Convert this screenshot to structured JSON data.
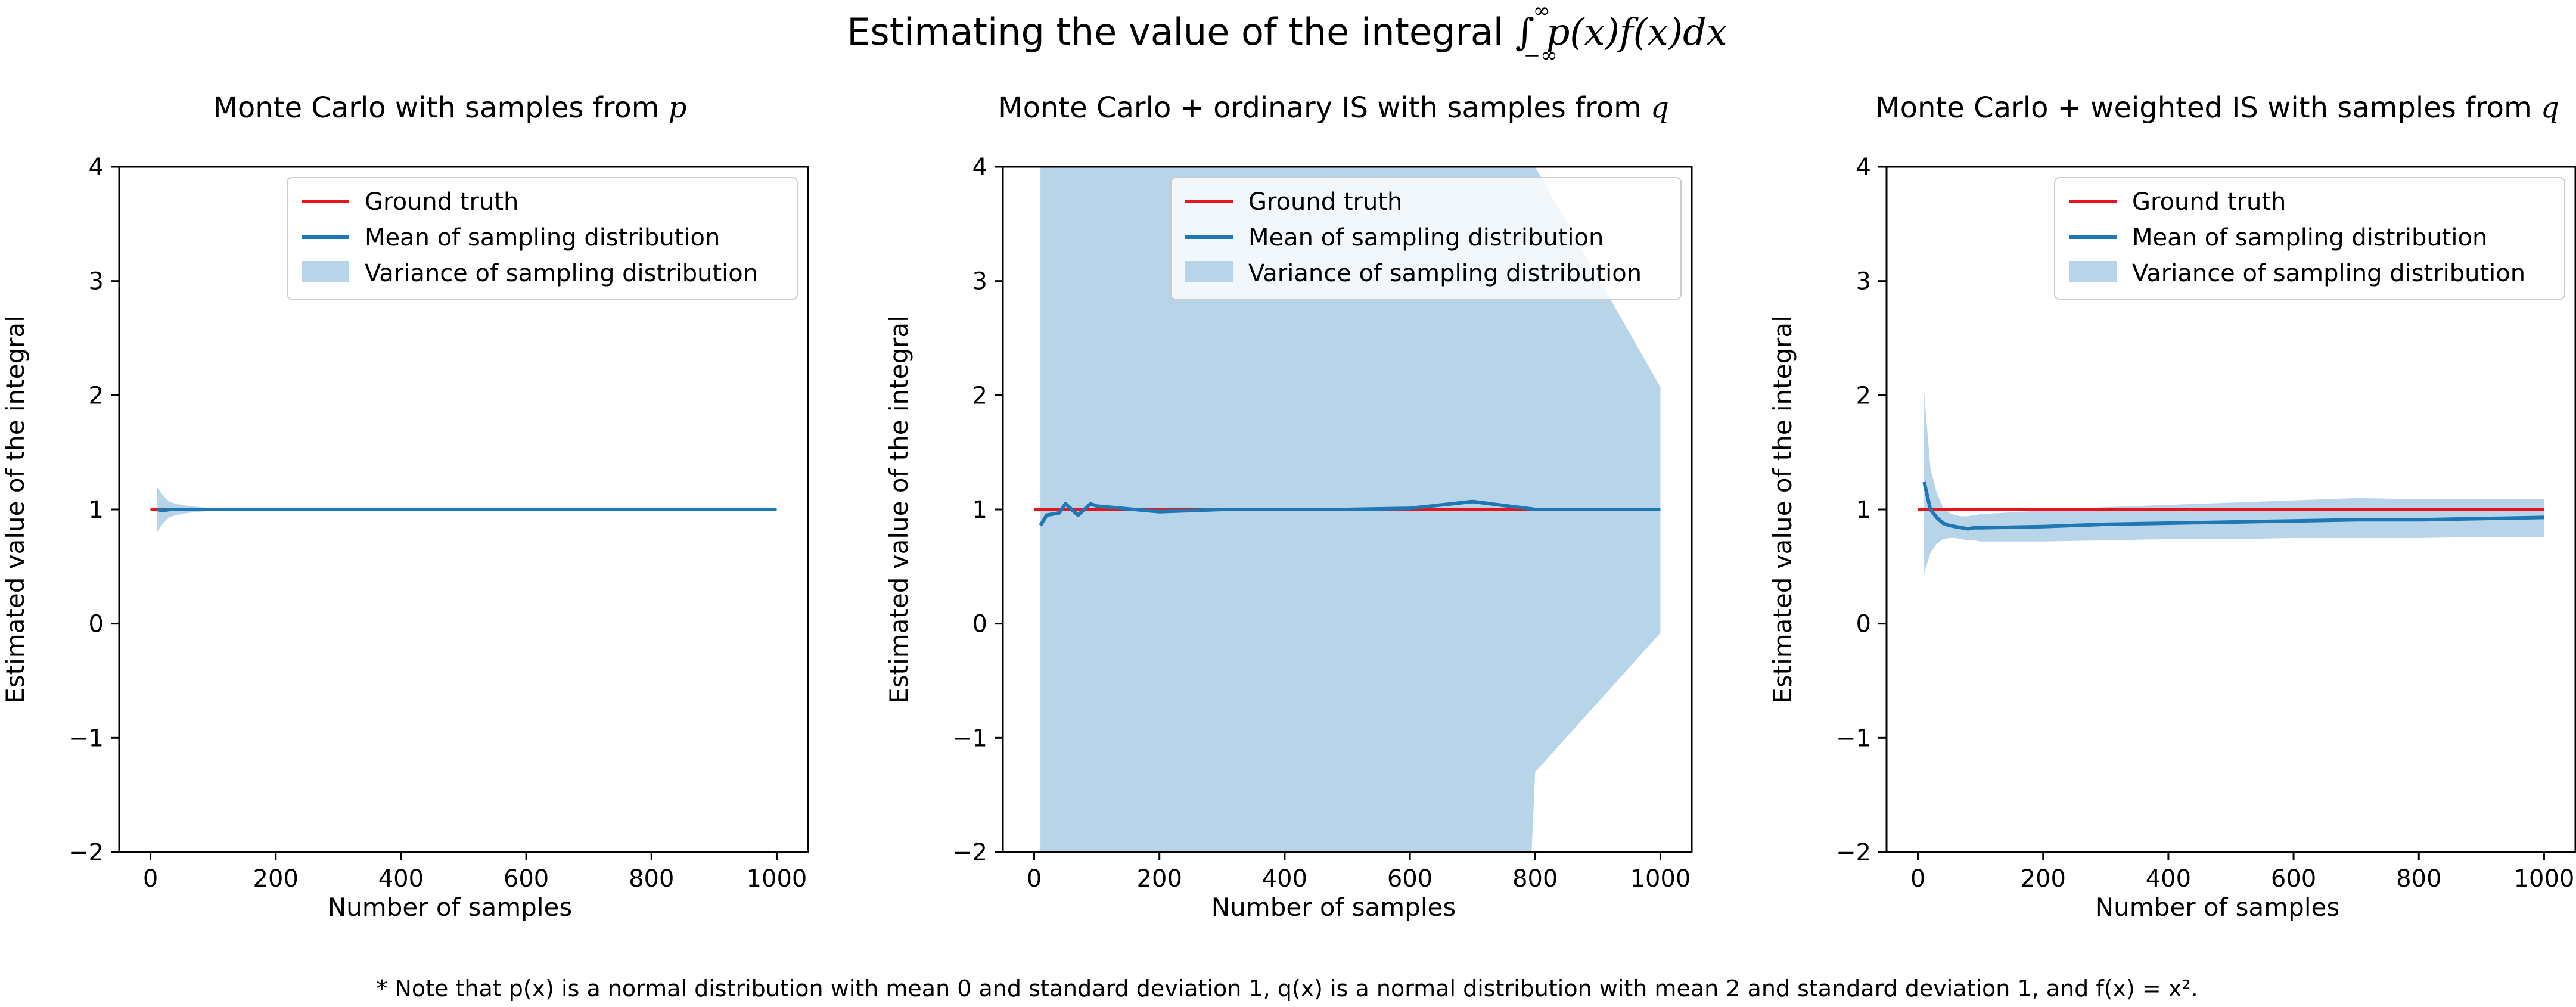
{
  "figure": {
    "title_text": "Estimating the value of the integral ",
    "title_math": "∫ p(x)f(x)dx",
    "title_math_upper": "∞",
    "title_math_lower": "−∞",
    "note_text": "* Note that p(x) is a normal distribution with mean 0 and standard deviation 1, q(x) is a normal distribution with mean 2 and standard deviation 1, and f(x) = x².",
    "colors": {
      "ground_truth": "#e8141b",
      "mean": "#1f77b4",
      "variance": "#b8d4e8"
    }
  },
  "chart_data": [
    {
      "type": "line",
      "title_text": "Monte Carlo with samples from ",
      "title_var": "p",
      "xlabel": "Number of samples",
      "ylabel": "Estimated value of the integral",
      "xlim": [
        -50,
        1050
      ],
      "ylim": [
        -2,
        4
      ],
      "xticks": [
        "0",
        "200",
        "400",
        "600",
        "800",
        "1000"
      ],
      "yticks": [
        "−2",
        "−1",
        "0",
        "1",
        "2",
        "3",
        "4"
      ],
      "legend": {
        "position": "top-right",
        "entries": [
          "Ground truth",
          "Mean of sampling distribution",
          "Variance of sampling distribution"
        ]
      },
      "series": [
        {
          "name": "Ground truth",
          "x": [
            0,
            1000
          ],
          "y": [
            1,
            1
          ]
        },
        {
          "name": "Mean of sampling distribution",
          "x": [
            10,
            20,
            30,
            40,
            50,
            60,
            70,
            80,
            90,
            100,
            200,
            300,
            400,
            500,
            600,
            700,
            800,
            900,
            1000
          ],
          "y": [
            1.0,
            0.99,
            1.0,
            1.0,
            1.0,
            1.0,
            1.0,
            1.0,
            1.0,
            1.0,
            1.0,
            1.0,
            1.0,
            1.0,
            1.0,
            1.0,
            1.0,
            1.0,
            1.0
          ]
        },
        {
          "name": "Variance of sampling distribution",
          "x": [
            10,
            20,
            30,
            40,
            50,
            60,
            70,
            80,
            90,
            100,
            200,
            300,
            400,
            500,
            600,
            700,
            800,
            900,
            1000
          ],
          "lower": [
            0.8,
            0.88,
            0.93,
            0.95,
            0.96,
            0.97,
            0.975,
            0.98,
            0.985,
            0.99,
            0.995,
            0.997,
            0.998,
            0.998,
            0.998,
            0.999,
            0.999,
            0.999,
            0.999
          ],
          "upper": [
            1.2,
            1.12,
            1.07,
            1.05,
            1.04,
            1.03,
            1.025,
            1.02,
            1.015,
            1.01,
            1.005,
            1.003,
            1.002,
            1.002,
            1.002,
            1.001,
            1.001,
            1.001,
            1.001
          ]
        }
      ]
    },
    {
      "type": "line",
      "title_text": "Monte Carlo + ordinary IS with samples from ",
      "title_var": "q",
      "xlabel": "Number of samples",
      "ylabel": "Estimated value of the integral",
      "xlim": [
        -50,
        1050
      ],
      "ylim": [
        -2,
        4
      ],
      "xticks": [
        "0",
        "200",
        "400",
        "600",
        "800",
        "1000"
      ],
      "yticks": [
        "−2",
        "−1",
        "0",
        "1",
        "2",
        "3",
        "4"
      ],
      "legend": {
        "position": "top-right",
        "entries": [
          "Ground truth",
          "Mean of sampling distribution",
          "Variance of sampling distribution"
        ]
      },
      "series": [
        {
          "name": "Ground truth",
          "x": [
            0,
            1000
          ],
          "y": [
            1,
            1
          ]
        },
        {
          "name": "Mean of sampling distribution",
          "x": [
            10,
            20,
            30,
            40,
            50,
            60,
            70,
            80,
            90,
            100,
            200,
            300,
            400,
            500,
            600,
            700,
            800,
            900,
            1000
          ],
          "y": [
            0.86,
            0.95,
            0.96,
            0.97,
            1.05,
            1.0,
            0.95,
            1.0,
            1.05,
            1.03,
            0.98,
            1.0,
            1.0,
            1.0,
            1.01,
            1.07,
            1.0,
            1.0,
            1.0
          ]
        },
        {
          "name": "Variance of sampling distribution",
          "x": [
            10,
            790,
            800,
            1000
          ],
          "lower": [
            -2.5,
            -2.5,
            -1.3,
            -0.08
          ],
          "upper": [
            4.5,
            4.5,
            4.0,
            2.07
          ]
        }
      ]
    },
    {
      "type": "line",
      "title_text": "Monte Carlo + weighted IS with samples from ",
      "title_var": "q",
      "xlabel": "Number of samples",
      "ylabel": "Estimated value of the integral",
      "xlim": [
        -50,
        1050
      ],
      "ylim": [
        -2,
        4
      ],
      "xticks": [
        "0",
        "200",
        "400",
        "600",
        "800",
        "1000"
      ],
      "yticks": [
        "−2",
        "−1",
        "0",
        "1",
        "2",
        "3",
        "4"
      ],
      "legend": {
        "position": "top-right",
        "entries": [
          "Ground truth",
          "Mean of sampling distribution",
          "Variance of sampling distribution"
        ]
      },
      "series": [
        {
          "name": "Ground truth",
          "x": [
            0,
            1000
          ],
          "y": [
            1,
            1
          ]
        },
        {
          "name": "Mean of sampling distribution",
          "x": [
            10,
            20,
            30,
            40,
            50,
            60,
            70,
            80,
            90,
            100,
            200,
            300,
            400,
            500,
            600,
            700,
            800,
            900,
            1000
          ],
          "y": [
            1.24,
            1.0,
            0.93,
            0.88,
            0.86,
            0.85,
            0.84,
            0.83,
            0.84,
            0.84,
            0.85,
            0.87,
            0.88,
            0.89,
            0.9,
            0.91,
            0.91,
            0.92,
            0.93
          ]
        },
        {
          "name": "Variance of sampling distribution",
          "x": [
            10,
            20,
            30,
            40,
            50,
            60,
            70,
            80,
            90,
            100,
            200,
            300,
            400,
            500,
            600,
            700,
            800,
            900,
            1000
          ],
          "lower": [
            0.44,
            0.62,
            0.7,
            0.74,
            0.75,
            0.75,
            0.74,
            0.73,
            0.73,
            0.72,
            0.72,
            0.73,
            0.74,
            0.74,
            0.75,
            0.75,
            0.75,
            0.76,
            0.76
          ],
          "upper": [
            2.02,
            1.36,
            1.15,
            1.02,
            0.97,
            0.95,
            0.94,
            0.94,
            0.95,
            0.96,
            0.99,
            1.02,
            1.04,
            1.06,
            1.08,
            1.1,
            1.09,
            1.09,
            1.09
          ]
        }
      ]
    }
  ]
}
